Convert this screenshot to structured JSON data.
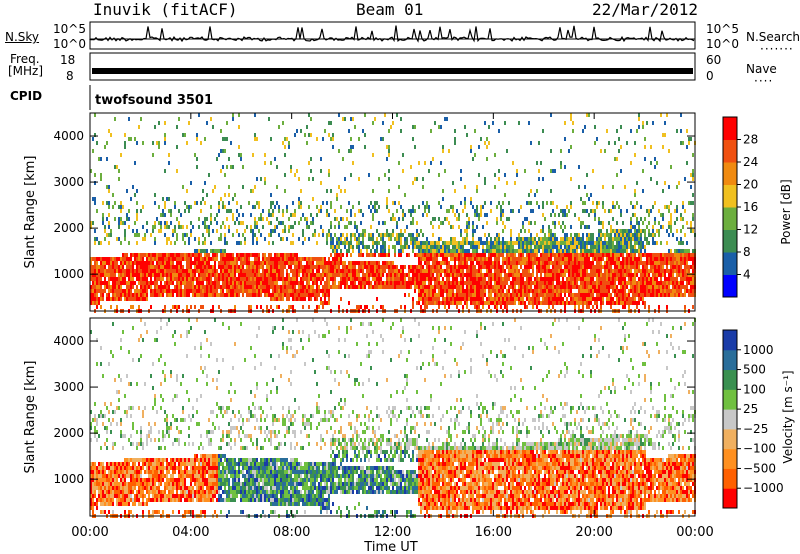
{
  "header": {
    "station": "Inuvik (fitACF)",
    "beam": "Beam 01",
    "date": "22/Mar/2012"
  },
  "side_labels": {
    "nsky": "N.Sky",
    "freq_line1": "Freq.",
    "freq_line2": "[MHz]",
    "cpid": "CPID",
    "nsearch": "N.Search",
    "nave": "Nave",
    "nsky_top": "10^5",
    "nsky_bottom": "10^0",
    "nsearch_top": "10^5",
    "nsearch_bottom": "10^0",
    "freq_top": "18",
    "freq_bottom": "8",
    "nave_top": "60",
    "nave_bottom": "0",
    "cpid_value": "twofsound 3501"
  },
  "chart_data": [
    {
      "type": "heatmap",
      "name": "power",
      "ylabel": "Slant Range [km]",
      "ylim": [
        200,
        4500
      ],
      "yticks": [
        "1000",
        "2000",
        "3000",
        "4000"
      ],
      "colorbar_label": "Power [dB]",
      "colorbar_ticks": [
        "28",
        "24",
        "20",
        "16",
        "12",
        "8",
        "4"
      ],
      "colorbar_colors": [
        "#0000ff",
        "#1a5fa8",
        "#3c8c52",
        "#6cae3e",
        "#f0c020",
        "#f08a10",
        "#f05010",
        "#ff0000"
      ],
      "range": [
        0,
        32
      ]
    },
    {
      "type": "heatmap",
      "name": "velocity",
      "ylabel": "Slant Range [km]",
      "ylim": [
        200,
        4500
      ],
      "yticks": [
        "1000",
        "2000",
        "3000",
        "4000"
      ],
      "colorbar_label": "Velocity [m s⁻¹]",
      "colorbar_ticks": [
        "1000",
        "500",
        "100",
        "25",
        "−25",
        "−100",
        "−500",
        "−1000"
      ],
      "colorbar_colors": [
        "#ff0000",
        "#ff6000",
        "#ff9020",
        "#f0b060",
        "#c8c8c8",
        "#70c040",
        "#3a9050",
        "#2a6e9a",
        "#1a3ca8"
      ],
      "xlabel": "Time UT",
      "xticks": [
        "00:00",
        "04:00",
        "08:00",
        "12:00",
        "16:00",
        "20:00",
        "00:00"
      ],
      "xlim": [
        0,
        24
      ]
    }
  ]
}
